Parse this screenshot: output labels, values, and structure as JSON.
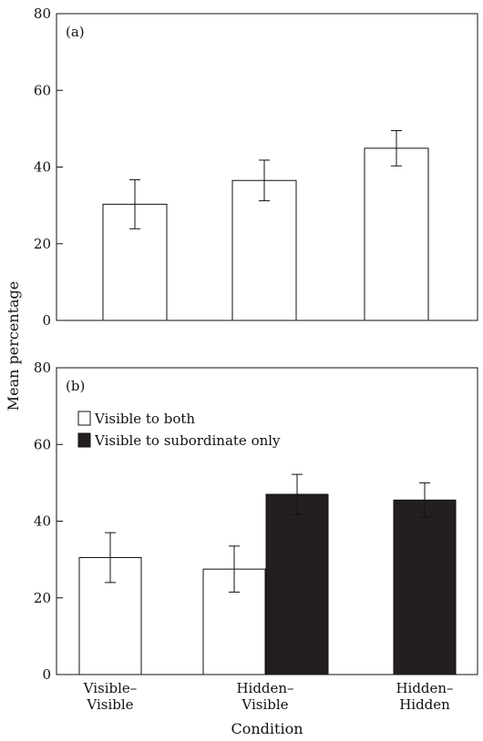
{
  "chart_data": [
    {
      "type": "bar",
      "panel_label": "(a)",
      "categories": [
        "Visible–Visible",
        "Hidden–Visible",
        "Hidden–Hidden"
      ],
      "series": [
        {
          "values": [
            30.3,
            36.5,
            44.9
          ],
          "error": [
            6.4,
            5.3,
            4.6
          ],
          "color": "#ffffff"
        }
      ],
      "ylim": [
        0,
        80
      ],
      "yticks": [
        "0",
        "20",
        "40",
        "60",
        "80"
      ],
      "grid": false
    },
    {
      "type": "bar",
      "panel_label": "(b)",
      "categories": [
        "Visible–Visible",
        "Hidden–Visible",
        "Hidden–Hidden"
      ],
      "category_labels": [
        [
          "Visible–",
          "Visible"
        ],
        [
          "Hidden–",
          "Visible"
        ],
        [
          "Hidden–",
          "Hidden"
        ]
      ],
      "series": [
        {
          "name": "Visible to both",
          "values": [
            30.5,
            27.5,
            null
          ],
          "error": [
            6.5,
            6.0,
            null
          ],
          "color": "#ffffff"
        },
        {
          "name": "Visible to subordinate only",
          "values": [
            null,
            47.0,
            45.5
          ],
          "error": [
            null,
            5.2,
            4.5
          ],
          "color": "#231f20"
        }
      ],
      "ylim": [
        0,
        80
      ],
      "yticks": [
        "0",
        "20",
        "40",
        "60",
        "80"
      ],
      "legend_position": "top-left",
      "grid": false
    }
  ],
  "ylabel": "Mean percentage",
  "xlabel": "Condition"
}
